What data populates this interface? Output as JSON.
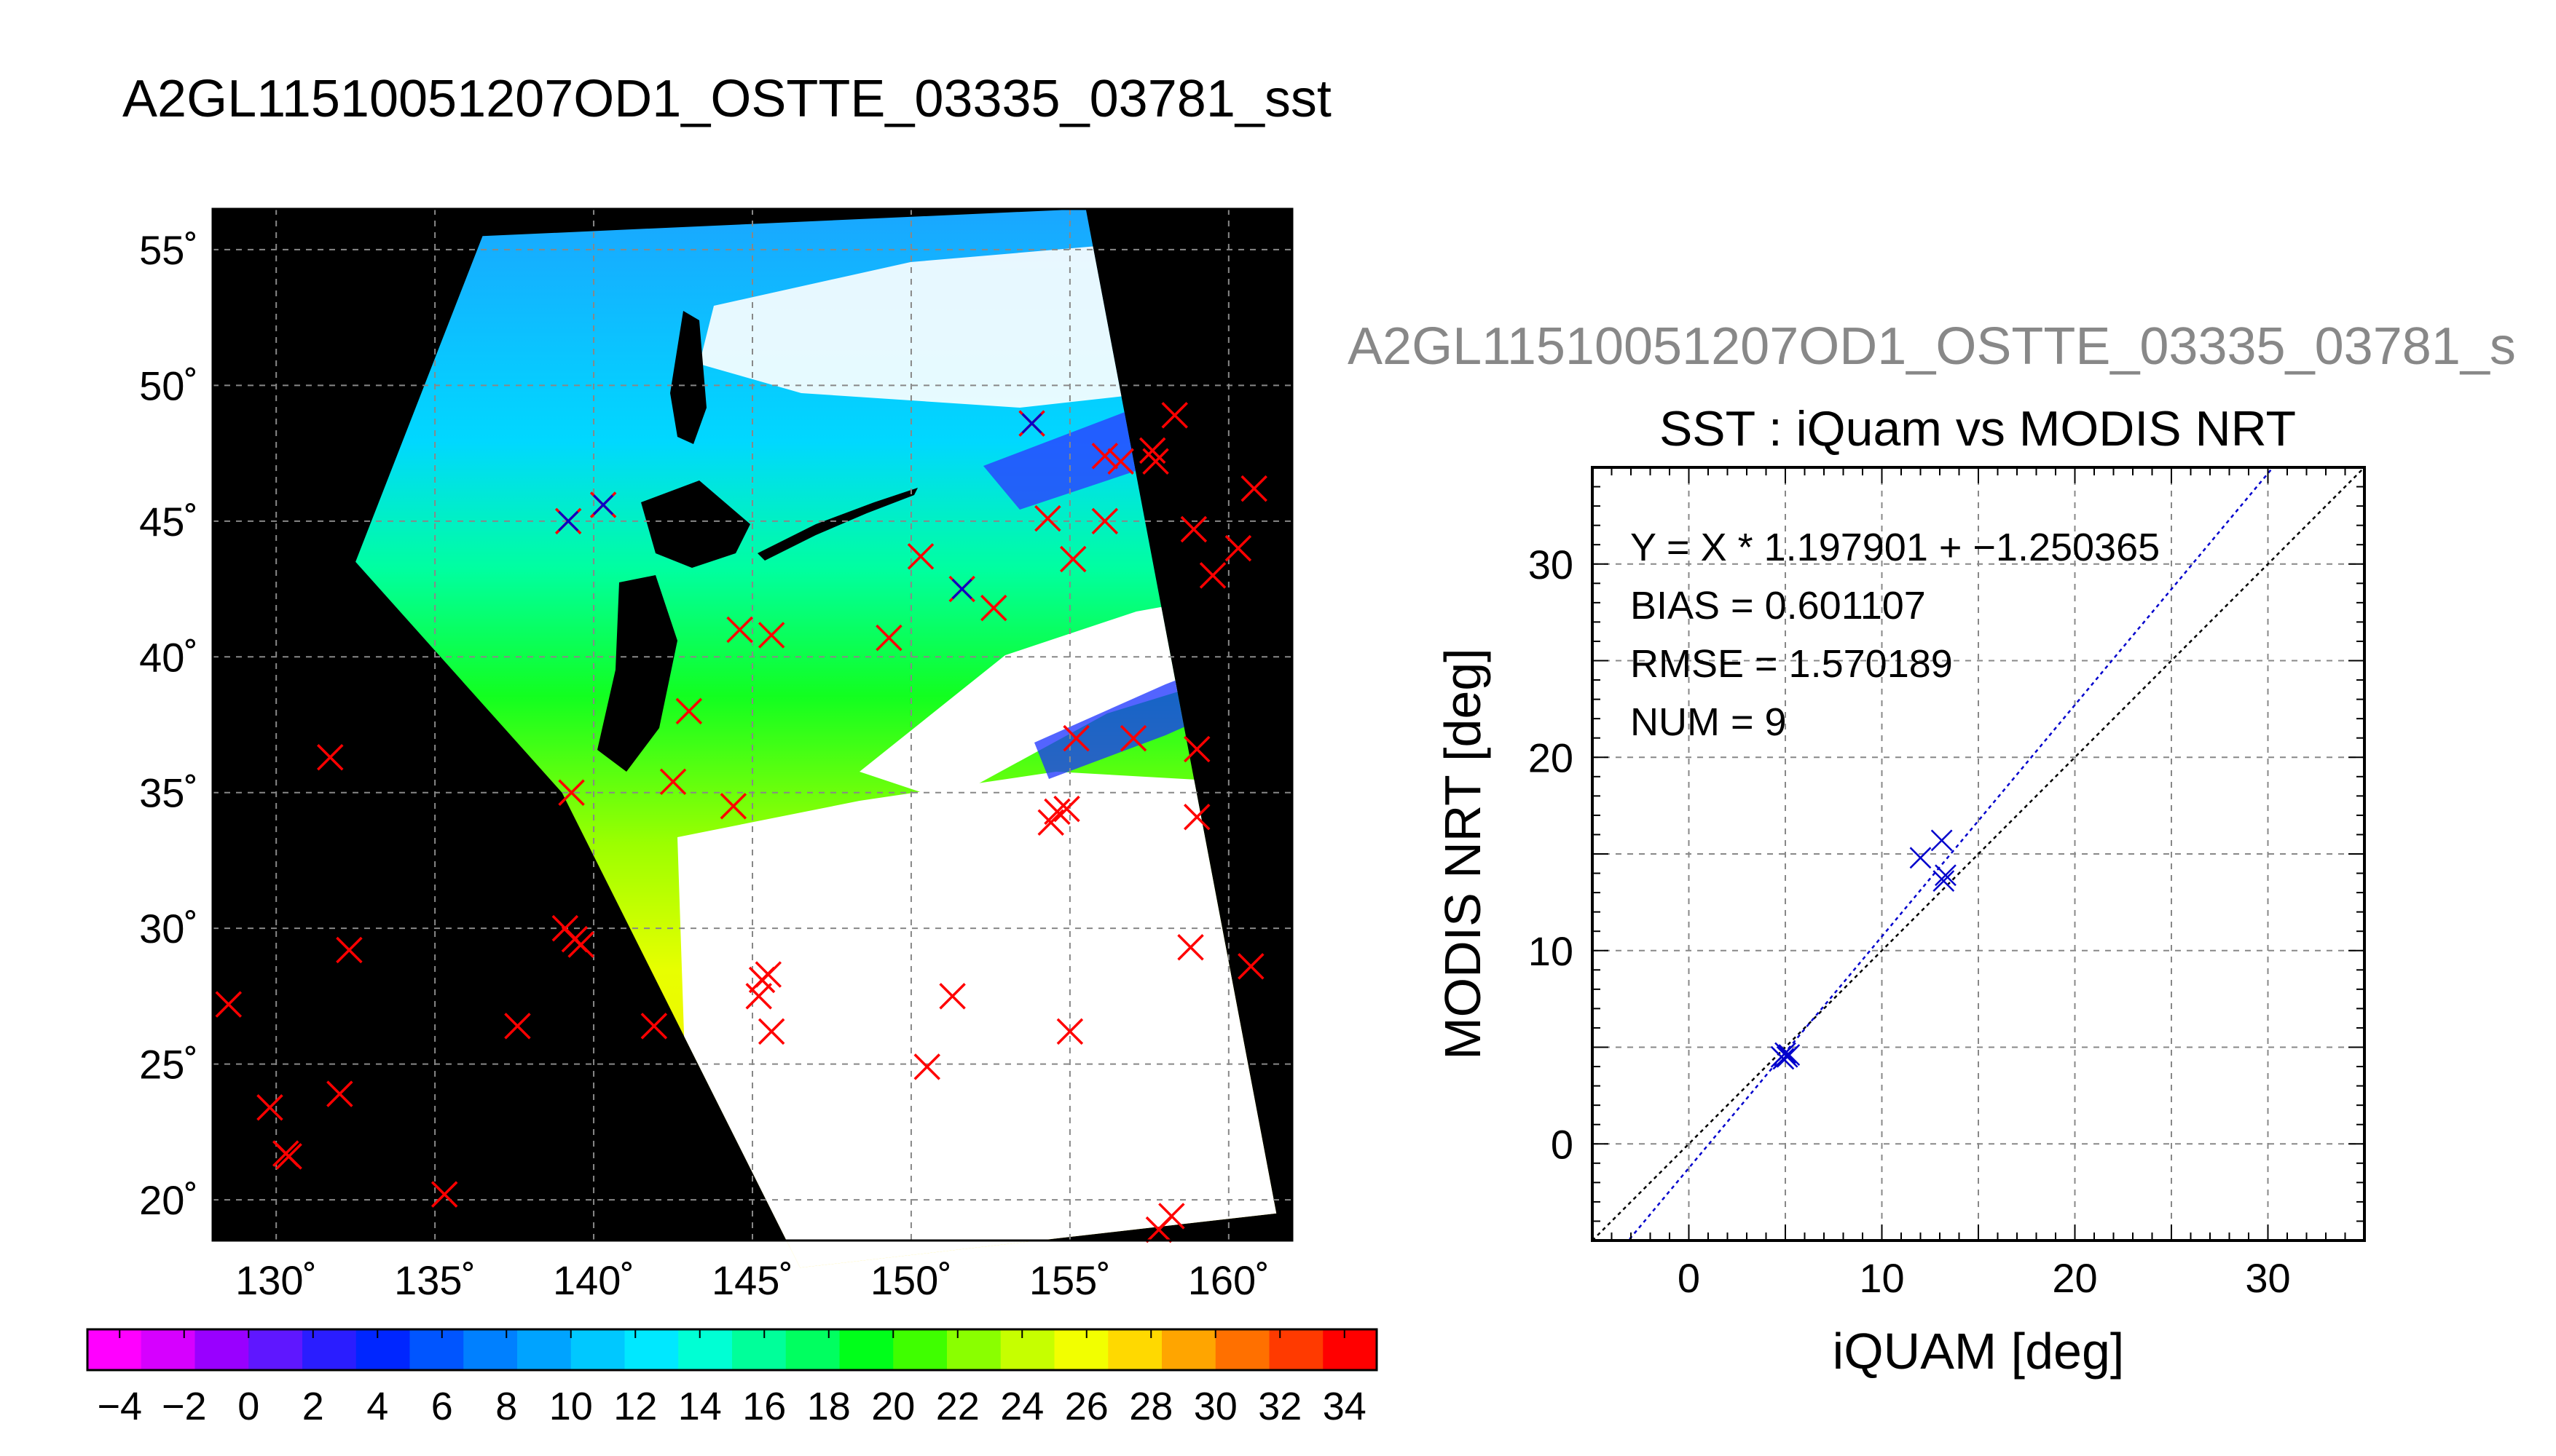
{
  "page_title": "A2GL11510051207OD1_OSTTE_03335_03781_sst",
  "colors": {
    "map_background": "#000000",
    "swath_cloud": "#ffffff",
    "insitu_marker": "#ff0000",
    "matchup_marker": "#0000cc",
    "regression_line": "#0000cc",
    "one_to_one_line": "#000000",
    "grid_line": "#888888",
    "subtitle_gray": "#888888"
  },
  "chart_data": [
    {
      "type": "heatmap",
      "title": "A2GL11510051207OD1_OSTTE_03335_03781_sst",
      "xlim": [
        128,
        162
      ],
      "ylim": [
        18.5,
        56.5
      ],
      "x_ticks": [
        130,
        135,
        140,
        145,
        150,
        155,
        160
      ],
      "y_ticks": [
        20,
        25,
        30,
        35,
        40,
        45,
        50,
        55
      ],
      "x_tick_labels": [
        "130˚",
        "135˚",
        "140˚",
        "145˚",
        "150˚",
        "155˚",
        "160˚"
      ],
      "y_tick_labels": [
        "20˚",
        "25˚",
        "30˚",
        "35˚",
        "40˚",
        "45˚",
        "50˚",
        "55˚"
      ],
      "grid": true,
      "swath_corners_lonlat": [
        [
          136.5,
          55.5
        ],
        [
          155.5,
          56.5
        ],
        [
          161.5,
          19.5
        ],
        [
          146.5,
          17.5
        ],
        [
          139,
          35
        ],
        [
          132.5,
          43.5
        ]
      ],
      "insitu_points": [
        [
          128.5,
          27.2
        ],
        [
          129.8,
          23.4
        ],
        [
          130.3,
          21.7
        ],
        [
          130.4,
          21.6
        ],
        [
          131.7,
          36.3
        ],
        [
          132.3,
          29.2
        ],
        [
          132.0,
          23.9
        ],
        [
          135.3,
          20.2
        ],
        [
          137.6,
          26.4
        ],
        [
          139.1,
          30.0
        ],
        [
          139.4,
          29.6
        ],
        [
          139.6,
          29.4
        ],
        [
          139.3,
          35.0
        ],
        [
          141.9,
          26.4
        ],
        [
          142.5,
          35.4
        ],
        [
          143.0,
          38.0
        ],
        [
          144.6,
          41.0
        ],
        [
          144.4,
          34.5
        ],
        [
          145.6,
          40.8
        ],
        [
          145.3,
          28.1
        ],
        [
          145.5,
          28.3
        ],
        [
          145.2,
          27.5
        ],
        [
          145.6,
          26.2
        ],
        [
          149.3,
          40.7
        ],
        [
          150.3,
          43.7
        ],
        [
          150.5,
          24.9
        ],
        [
          151.3,
          27.5
        ],
        [
          152.6,
          41.8
        ],
        [
          154.3,
          45.1
        ],
        [
          154.6,
          34.3
        ],
        [
          154.4,
          33.9
        ],
        [
          154.9,
          34.4
        ],
        [
          155.1,
          43.6
        ],
        [
          155.2,
          37.0
        ],
        [
          155.0,
          26.2
        ],
        [
          156.1,
          47.4
        ],
        [
          156.1,
          45.0
        ],
        [
          156.6,
          47.2
        ],
        [
          157.0,
          37.0
        ],
        [
          157.6,
          47.6
        ],
        [
          157.7,
          47.2
        ],
        [
          158.2,
          19.4
        ],
        [
          157.8,
          18.9
        ],
        [
          158.3,
          48.9
        ],
        [
          158.8,
          29.3
        ],
        [
          158.9,
          44.7
        ],
        [
          159.0,
          36.6
        ],
        [
          159.0,
          34.1
        ],
        [
          159.5,
          43.0
        ],
        [
          160.3,
          44.0
        ],
        [
          160.7,
          28.6
        ],
        [
          160.8,
          46.2
        ]
      ],
      "matchup_points": [
        [
          139.2,
          45.0
        ],
        [
          140.3,
          45.6
        ],
        [
          151.6,
          42.5
        ],
        [
          153.8,
          48.6
        ]
      ]
    },
    {
      "type": "scatter",
      "subtitle": "A2GL11510051207OD1_OSTTE_03335_03781_s",
      "title": "SST : iQuam vs MODIS NRT",
      "xlabel": "iQUAM [deg]",
      "ylabel": "MODIS NRT [deg]",
      "xlim": [
        -5,
        35
      ],
      "ylim": [
        -5,
        35
      ],
      "x_ticks": [
        0,
        10,
        20,
        30
      ],
      "y_ticks": [
        0,
        10,
        20,
        30
      ],
      "grid": true,
      "x": [
        4.8,
        5.0,
        5.2,
        4.9,
        12.0,
        13.1,
        13.3,
        13.2,
        5.1
      ],
      "y": [
        4.5,
        4.7,
        4.6,
        4.4,
        14.8,
        15.7,
        13.9,
        13.6,
        4.5
      ],
      "regression": {
        "slope": 1.197901,
        "intercept": -1.250365
      },
      "annotations": [
        "Y = X * 1.197901 + −1.250365",
        "BIAS = 0.601107",
        "RMSE = 1.570189",
        "NUM = 9"
      ]
    }
  ],
  "colorbar": {
    "min": -5,
    "max": 35,
    "tick_labels": [
      "−4",
      "−2",
      "0",
      "2",
      "4",
      "6",
      "8",
      "10",
      "12",
      "14",
      "16",
      "18",
      "20",
      "22",
      "24",
      "26",
      "28",
      "30",
      "32",
      "34"
    ],
    "tick_values": [
      -4,
      -2,
      0,
      2,
      4,
      6,
      8,
      10,
      12,
      14,
      16,
      18,
      20,
      22,
      24,
      26,
      28,
      30,
      32,
      34
    ],
    "colors": [
      "#ff00ff",
      "#d600ff",
      "#9900ff",
      "#5f17ff",
      "#2a1dff",
      "#0026ff",
      "#0055ff",
      "#0080ff",
      "#00a3ff",
      "#00c8ff",
      "#00e8ff",
      "#00ffd4",
      "#00ff9a",
      "#00ff60",
      "#00ff1a",
      "#3fff00",
      "#8aff00",
      "#c6ff00",
      "#f2ff00",
      "#ffd900",
      "#ffa500",
      "#ff7000",
      "#ff3a00",
      "#ff0000"
    ]
  }
}
